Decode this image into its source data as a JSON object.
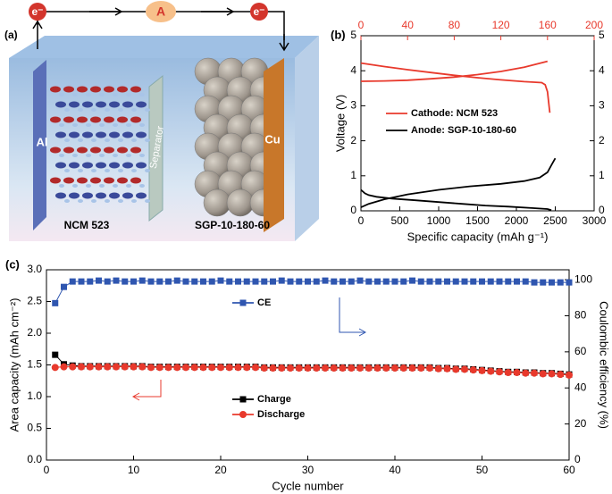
{
  "schematic": {
    "label": "(a)",
    "electrons": [
      "e⁻",
      "e⁻"
    ],
    "ammeter": "A",
    "left_metal": "Al",
    "right_metal": "Cu",
    "separator": "Separator",
    "left_material": "NCM 523",
    "right_material": "SGP-10-180-60"
  },
  "chart_data": [
    {
      "type": "line",
      "panel_label": "(b)",
      "xlabel": "Specific capacity (mAh g⁻¹)",
      "ylabel": "Voltage (V)",
      "xlim": [
        0,
        3000
      ],
      "xticks": [
        0,
        500,
        1000,
        1500,
        2000,
        2500,
        3000
      ],
      "x2lim": [
        0,
        200
      ],
      "x2ticks": [
        0,
        40,
        80,
        120,
        160,
        200
      ],
      "x2color": "#e8392c",
      "ylim": [
        0,
        5
      ],
      "yticks": [
        0,
        1,
        2,
        3,
        4,
        5
      ],
      "mirror_y": true,
      "legend": "center",
      "series": [
        {
          "name": "Cathode: NCM 523",
          "color": "#e8392c",
          "xaxis": "x2",
          "x": [
            0,
            20,
            40,
            60,
            80,
            100,
            120,
            140,
            160,
            null,
            0,
            20,
            40,
            60,
            80,
            100,
            120,
            140,
            150,
            155,
            158,
            160,
            161,
            162
          ],
          "values": [
            3.7,
            3.71,
            3.73,
            3.77,
            3.82,
            3.89,
            3.98,
            4.1,
            4.27,
            null,
            4.22,
            4.12,
            4.03,
            3.95,
            3.87,
            3.8,
            3.74,
            3.69,
            3.67,
            3.66,
            3.6,
            3.4,
            3.1,
            2.8
          ]
        },
        {
          "name": "Anode: SGP-10-180-60",
          "color": "#000000",
          "x": [
            0,
            50,
            100,
            200,
            400,
            700,
            1000,
            1300,
            1600,
            1900,
            2200,
            2400,
            2450,
            null,
            0,
            100,
            300,
            600,
            1000,
            1400,
            1800,
            2100,
            2300,
            2400,
            2450,
            2500
          ],
          "values": [
            0.6,
            0.5,
            0.45,
            0.4,
            0.35,
            0.3,
            0.25,
            0.2,
            0.15,
            0.12,
            0.08,
            0.05,
            0.02,
            null,
            0.1,
            0.2,
            0.33,
            0.47,
            0.6,
            0.7,
            0.77,
            0.85,
            0.95,
            1.1,
            1.3,
            1.5
          ]
        }
      ]
    },
    {
      "type": "line",
      "panel_label": "(c)",
      "xlabel": "Cycle number",
      "ylabel": "Area capacity (mAh cm⁻²)",
      "y2label": "Coulombic efficiency (%)",
      "xlim": [
        0,
        60
      ],
      "xticks": [
        0,
        10,
        20,
        30,
        40,
        50,
        60
      ],
      "ylim": [
        0,
        3.0
      ],
      "yticks": [
        {
          "value": 0,
          "label": "0.0"
        },
        {
          "value": 0.5,
          "label": "0.5"
        },
        {
          "value": 1,
          "label": "1.0"
        },
        {
          "value": 1.5,
          "label": "1.5"
        },
        {
          "value": 2,
          "label": "2.0"
        },
        {
          "value": 2.5,
          "label": "2.5"
        },
        {
          "value": 3,
          "label": "3.0"
        }
      ],
      "y2lim": [
        0,
        105.5
      ],
      "y2ticks": [
        0,
        20,
        40,
        60,
        80,
        100
      ],
      "x": [
        1,
        2,
        3,
        4,
        5,
        6,
        7,
        8,
        9,
        10,
        11,
        12,
        13,
        14,
        15,
        16,
        17,
        18,
        19,
        20,
        21,
        22,
        23,
        24,
        25,
        26,
        27,
        28,
        29,
        30,
        31,
        32,
        33,
        34,
        35,
        36,
        37,
        38,
        39,
        40,
        41,
        42,
        43,
        44,
        45,
        46,
        47,
        48,
        49,
        50,
        51,
        52,
        53,
        54,
        55,
        56,
        57,
        58,
        59,
        60
      ],
      "series": [
        {
          "name": "CE",
          "color": "#2f56b0",
          "marker": "square",
          "axis": "y2",
          "values": [
            87,
            96,
            99,
            99,
            99,
            99.5,
            99,
            99.5,
            99,
            99,
            99.5,
            99,
            99,
            99,
            99.5,
            99,
            99,
            99,
            99,
            99.5,
            99,
            99,
            99,
            99,
            99,
            99,
            99.5,
            99,
            99,
            99,
            99,
            99.5,
            99,
            99,
            99,
            99.5,
            99,
            99,
            99,
            99,
            99,
            99.5,
            99,
            99,
            99,
            99,
            99,
            99,
            99,
            99,
            99,
            99,
            99,
            99,
            99,
            98.5,
            98.5,
            98.5,
            98.5,
            98.5
          ]
        },
        {
          "name": "Charge",
          "color": "#000000",
          "marker": "square",
          "values": [
            1.66,
            1.51,
            1.49,
            1.48,
            1.48,
            1.48,
            1.48,
            1.48,
            1.48,
            1.48,
            1.48,
            1.47,
            1.47,
            1.47,
            1.47,
            1.47,
            1.47,
            1.47,
            1.47,
            1.47,
            1.47,
            1.47,
            1.47,
            1.47,
            1.46,
            1.46,
            1.46,
            1.46,
            1.46,
            1.46,
            1.46,
            1.46,
            1.46,
            1.46,
            1.46,
            1.46,
            1.46,
            1.46,
            1.46,
            1.46,
            1.46,
            1.46,
            1.46,
            1.46,
            1.45,
            1.45,
            1.44,
            1.44,
            1.43,
            1.42,
            1.41,
            1.4,
            1.39,
            1.39,
            1.38,
            1.38,
            1.37,
            1.37,
            1.36,
            1.35
          ]
        },
        {
          "name": "Discharge",
          "color": "#e8392c",
          "marker": "circle",
          "values": [
            1.46,
            1.47,
            1.47,
            1.47,
            1.47,
            1.47,
            1.47,
            1.47,
            1.47,
            1.47,
            1.47,
            1.46,
            1.46,
            1.46,
            1.46,
            1.46,
            1.46,
            1.46,
            1.46,
            1.46,
            1.46,
            1.46,
            1.46,
            1.46,
            1.45,
            1.45,
            1.45,
            1.45,
            1.45,
            1.45,
            1.45,
            1.45,
            1.45,
            1.45,
            1.45,
            1.45,
            1.45,
            1.45,
            1.45,
            1.45,
            1.45,
            1.45,
            1.45,
            1.45,
            1.44,
            1.44,
            1.43,
            1.43,
            1.42,
            1.41,
            1.4,
            1.39,
            1.38,
            1.38,
            1.37,
            1.37,
            1.36,
            1.36,
            1.35,
            1.34
          ]
        }
      ]
    }
  ]
}
